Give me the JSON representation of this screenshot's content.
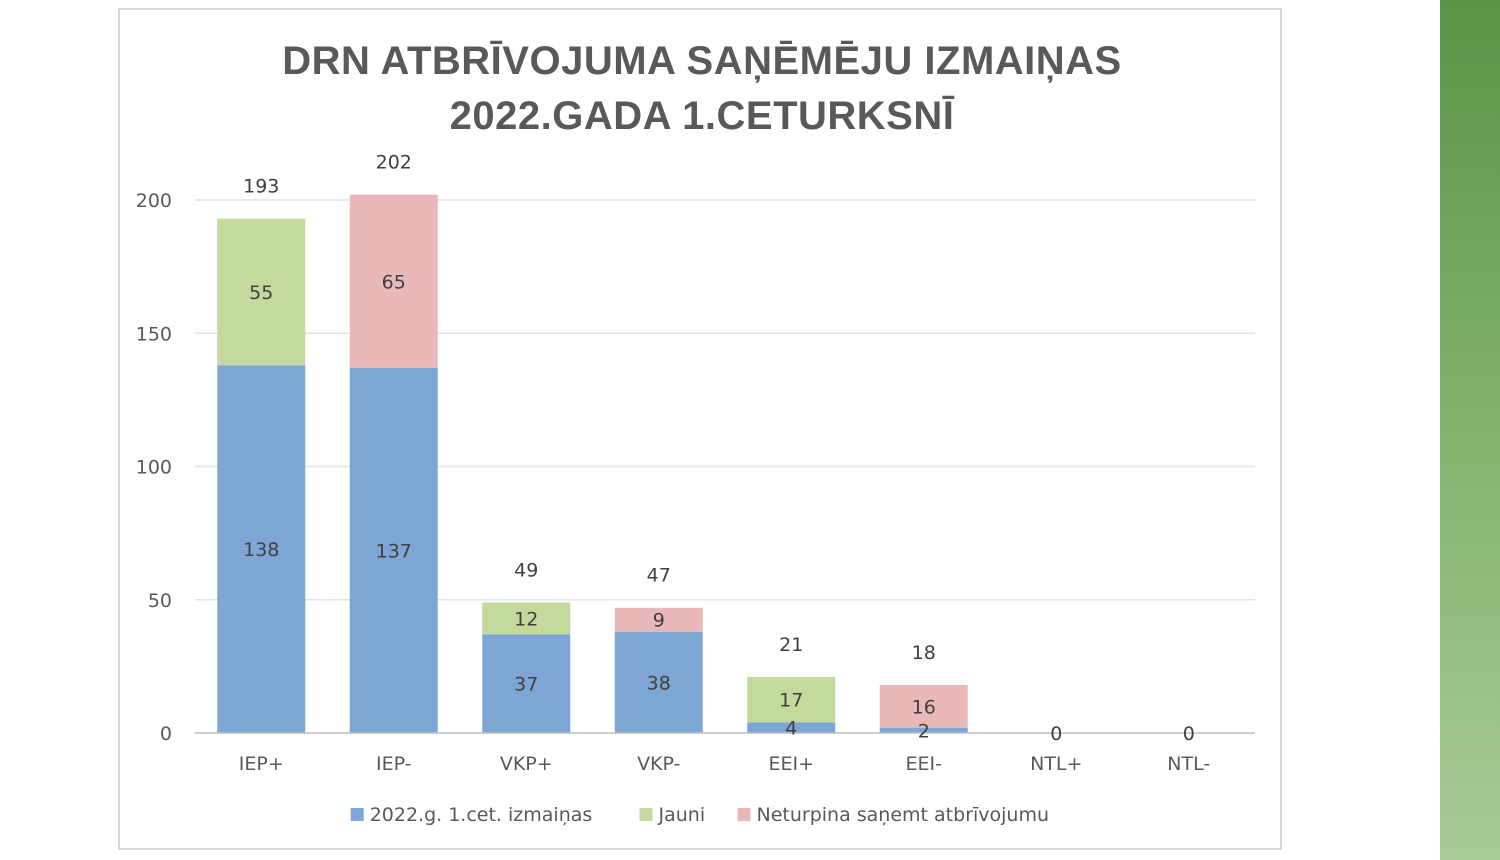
{
  "colors": {
    "change": "#7ea6d4",
    "new": "#c4d99c",
    "stop": "#e9b9b9",
    "gridline": "#e3e3e3",
    "axis": "#bfbfbf"
  },
  "chart_data": {
    "type": "bar",
    "stacked": true,
    "title_lines": [
      "DRN ATBRĪVOJUMA SAŅĒMĒJU IZMAIŅAS",
      "2022.GADA 1.CETURKSNĪ"
    ],
    "categories": [
      "IEP+",
      "IEP-",
      "VKP+",
      "VKP-",
      "EEI+",
      "EEI-",
      "NTL+",
      "NTL-"
    ],
    "series": [
      {
        "name": "2022.g. 1.cet. izmaiņas",
        "key": "change",
        "values": [
          138,
          137,
          37,
          38,
          4,
          2,
          0,
          0
        ]
      },
      {
        "name": "Jauni",
        "key": "new",
        "values": [
          55,
          null,
          12,
          null,
          17,
          null,
          null,
          null
        ]
      },
      {
        "name": "Neturpina saņemt atbrīvojumu",
        "key": "stop",
        "values": [
          null,
          65,
          null,
          9,
          null,
          16,
          null,
          null
        ]
      }
    ],
    "totals": [
      193,
      202,
      49,
      47,
      21,
      18,
      0,
      0
    ],
    "ylim": [
      0,
      200
    ],
    "yticks": [
      0,
      50,
      100,
      150,
      200
    ],
    "grid": true,
    "legend_position": "bottom"
  }
}
